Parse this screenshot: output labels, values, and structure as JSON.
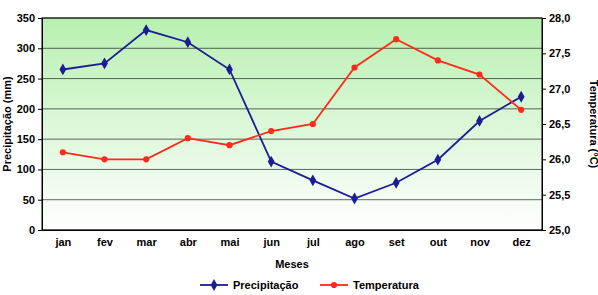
{
  "chart_data": {
    "type": "line",
    "x_label": "Meses",
    "y_label": "Precipitação (mm)",
    "y2_label": "Temperatura (°C)",
    "categories": [
      "jan",
      "fev",
      "mar",
      "abr",
      "mai",
      "jun",
      "jul",
      "ago",
      "set",
      "out",
      "nov",
      "dez"
    ],
    "series": [
      {
        "name": "Precipitação",
        "color": "#1c1c96",
        "marker": "diamond",
        "line_style": "solid",
        "values": [
          265,
          275,
          330,
          310,
          265,
          113,
          82,
          52,
          78,
          116,
          180,
          220
        ]
      },
      {
        "name": "Temperatura",
        "color": "#ff2a1a",
        "marker": "circle",
        "line_style": "solid",
        "axis": "y2",
        "values": [
          26.1,
          26.0,
          26.0,
          26.3,
          26.2,
          26.4,
          26.5,
          27.3,
          27.7,
          27.4,
          27.2,
          26.7
        ]
      }
    ],
    "ylim": [
      0,
      350
    ],
    "yticks": [
      0,
      50,
      100,
      150,
      200,
      250,
      300,
      350
    ],
    "y2lim": [
      25.0,
      28.0
    ],
    "y2ticks": [
      {
        "value": 25.0,
        "label": "25,0"
      },
      {
        "value": 25.5,
        "label": "25,5"
      },
      {
        "value": 26.0,
        "label": "26,0"
      },
      {
        "value": 26.5,
        "label": "26,5"
      },
      {
        "value": 27.0,
        "label": "27,0"
      },
      {
        "value": 27.5,
        "label": "27,5"
      },
      {
        "value": 28.0,
        "label": "28,0"
      }
    ],
    "grid": true,
    "legend": "bottom"
  }
}
